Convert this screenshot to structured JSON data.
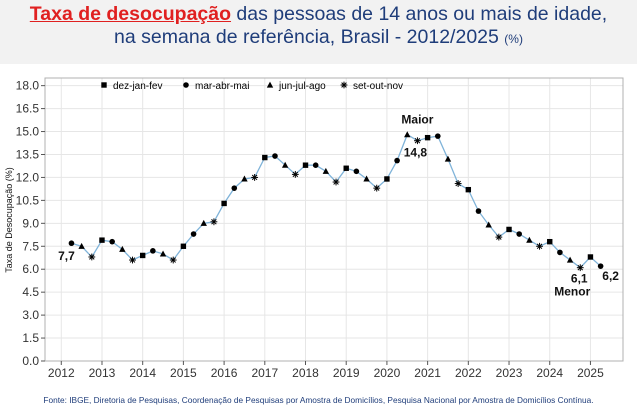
{
  "header": {
    "title_highlight": "Taxa de desocupação",
    "title_rest": " das pessoas de 14 anos ou mais de idade,",
    "title_line2": "na semana de referência, Brasil - 2012/2025",
    "title_unit": "(%)"
  },
  "source": "Fonte: IBGE, Diretoria de Pesquisas, Coordenação de Pesquisas por Amostra de Domicílios, Pesquisa Nacional por Amostra de Domicílios Contínua.",
  "colors": {
    "title_blue": "#1f3d7a",
    "title_red": "#e02020",
    "line": "#7fb3d9",
    "marker": "#000000",
    "grid": "#e6e6e6",
    "axis": "#b0b0b0"
  },
  "chart_data": {
    "type": "line",
    "title": "Taxa de desocupação das pessoas de 14 anos ou mais de idade, na semana de referência, Brasil - 2012/2025 (%)",
    "xlabel": "",
    "ylabel": "Taxa de Desocupação (%)",
    "xlim": [
      2011.6,
      2025.8
    ],
    "ylim": [
      0,
      18.5
    ],
    "x_ticks": [
      2012,
      2013,
      2014,
      2015,
      2016,
      2017,
      2018,
      2019,
      2020,
      2021,
      2022,
      2023,
      2024,
      2025
    ],
    "y_ticks": [
      "0.0",
      "1.5",
      "3.0",
      "4.5",
      "6.0",
      "7.5",
      "9.0",
      "10.5",
      "12.0",
      "13.5",
      "15.0",
      "16.5",
      "18.0"
    ],
    "grid": true,
    "legend": [
      {
        "label": "dez-jan-fev",
        "marker": "square"
      },
      {
        "label": "mar-abr-mai",
        "marker": "circle"
      },
      {
        "label": "jun-jul-ago",
        "marker": "triangle"
      },
      {
        "label": "set-out-nov",
        "marker": "asterisk"
      }
    ],
    "legend_position": "top-left",
    "series": [
      {
        "name": "Taxa de desocupação",
        "values": [
          7.7,
          7.5,
          6.8,
          7.9,
          7.8,
          7.3,
          6.6,
          6.9,
          7.2,
          7.0,
          6.6,
          7.5,
          8.3,
          9.0,
          9.1,
          10.3,
          11.3,
          11.9,
          12.0,
          13.3,
          13.4,
          12.8,
          12.2,
          12.8,
          12.8,
          12.4,
          11.7,
          12.6,
          12.4,
          11.9,
          11.3,
          11.9,
          13.1,
          14.8,
          14.4,
          14.6,
          14.7,
          13.2,
          11.6,
          11.2,
          9.8,
          8.9,
          8.1,
          8.6,
          8.3,
          7.9,
          7.5,
          7.8,
          7.1,
          6.6,
          6.1,
          6.8,
          6.2
        ],
        "x_start": 2012.25,
        "x_step": 0.25,
        "marker_cycle": [
          "circle",
          "triangle",
          "asterisk",
          "square"
        ]
      }
    ],
    "annotations": [
      {
        "text": "7,7",
        "x": 2012.25,
        "y": 7.7
      },
      {
        "text": "Maior",
        "x": 2020.75,
        "y": 14.8
      },
      {
        "text": "14,8",
        "x": 2020.75,
        "y": 14.8
      },
      {
        "text": "6,1",
        "x": 2024.75,
        "y": 6.1
      },
      {
        "text": "Menor",
        "x": 2024.75,
        "y": 6.1
      },
      {
        "text": "6,2",
        "x": 2025.25,
        "y": 6.2
      }
    ]
  }
}
